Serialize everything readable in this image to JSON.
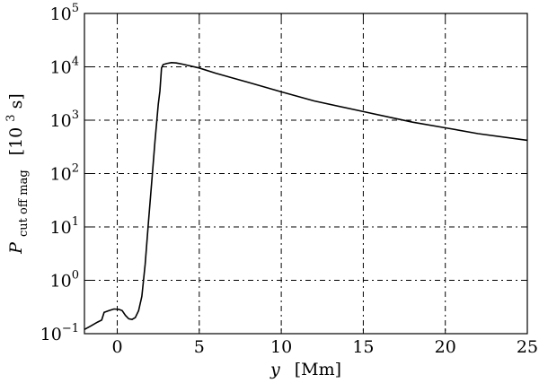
{
  "chart_data": {
    "type": "line",
    "title": "",
    "xlabel": {
      "var": "y",
      "unit": "[Mm]"
    },
    "ylabel": {
      "var": "P",
      "sub": "cut off mag",
      "unit_pre": "[10",
      "unit_exp": "3",
      "unit_post": " s]"
    },
    "xlim": [
      -2,
      25
    ],
    "ylim": [
      0.1,
      100000
    ],
    "yscale": "log",
    "grid": true,
    "x_ticks": [
      {
        "value": 0,
        "label": "0"
      },
      {
        "value": 5,
        "label": "5"
      },
      {
        "value": 10,
        "label": "10"
      },
      {
        "value": 15,
        "label": "15"
      },
      {
        "value": 20,
        "label": "20"
      },
      {
        "value": 25,
        "label": "25"
      }
    ],
    "y_ticks": [
      {
        "value": 0.1,
        "base": "10",
        "exp": "−1"
      },
      {
        "value": 1,
        "base": "10",
        "exp": "0"
      },
      {
        "value": 10,
        "base": "10",
        "exp": "1"
      },
      {
        "value": 100,
        "base": "10",
        "exp": "2"
      },
      {
        "value": 1000,
        "base": "10",
        "exp": "3"
      },
      {
        "value": 10000,
        "base": "10",
        "exp": "4"
      },
      {
        "value": 100000,
        "base": "10",
        "exp": "5"
      }
    ],
    "series": [
      {
        "x": [
          -2.0,
          -1.6,
          -1.2,
          -0.95,
          -0.8,
          -0.5,
          -0.2,
          0.1,
          0.3,
          0.5,
          0.7,
          0.9,
          1.1,
          1.3,
          1.5,
          1.7,
          1.9,
          2.1,
          2.3,
          2.5,
          2.6,
          2.7,
          2.8,
          3.0,
          3.3,
          3.6,
          4.0,
          5.0,
          6.0,
          8.0,
          10.0,
          12.0,
          15.0,
          18.0,
          20.0,
          22.0,
          25.0
        ],
        "y": [
          0.12,
          0.14,
          0.165,
          0.18,
          0.25,
          0.27,
          0.29,
          0.285,
          0.27,
          0.22,
          0.19,
          0.185,
          0.2,
          0.27,
          0.5,
          2.0,
          12,
          70,
          400,
          2000,
          3500,
          9500,
          11000,
          11500,
          12000,
          11800,
          11200,
          9500,
          7600,
          5100,
          3400,
          2300,
          1450,
          920,
          720,
          560,
          420
        ]
      }
    ]
  }
}
